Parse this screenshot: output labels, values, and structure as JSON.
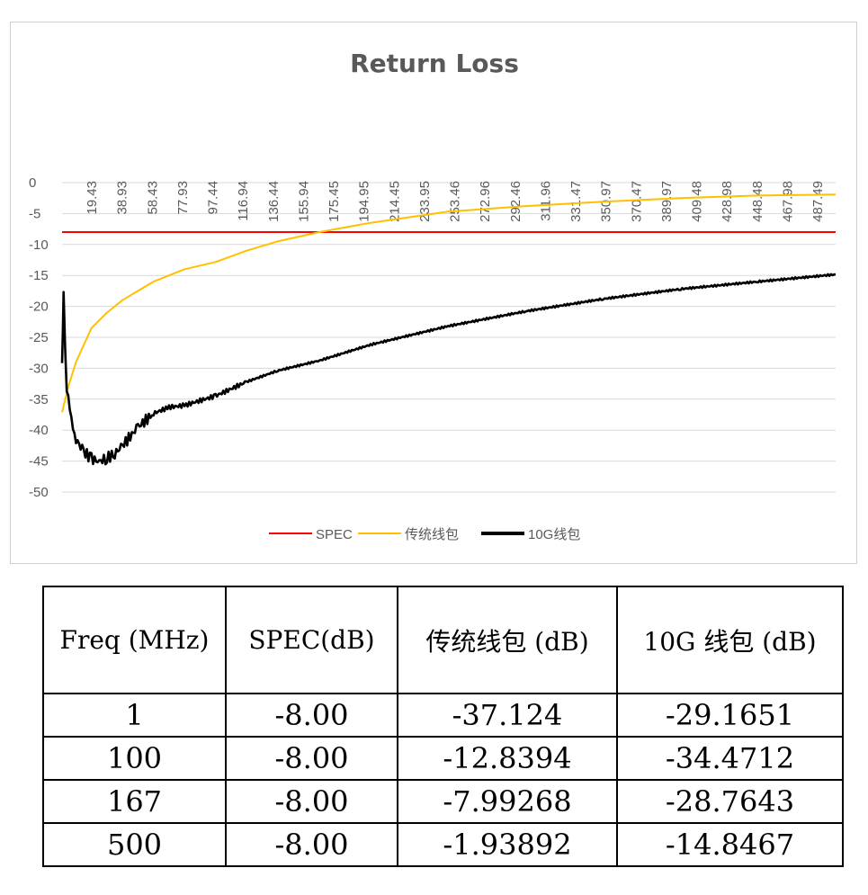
{
  "chart_data": {
    "type": "line",
    "title": "Return Loss",
    "xlabel": "",
    "ylabel": "",
    "x_tick_labels": [
      "19.43",
      "38.93",
      "58.43",
      "77.93",
      "97.44",
      "116.94",
      "136.44",
      "155.94",
      "175.45",
      "194.95",
      "214.45",
      "233.95",
      "253.46",
      "272.96",
      "292.46",
      "311.96",
      "331.47",
      "350.97",
      "370.47",
      "389.97",
      "409.48",
      "428.98",
      "448.48",
      "467.98",
      "487.49"
    ],
    "xlim": [
      1,
      500
    ],
    "ylim": [
      -50,
      0
    ],
    "y_ticks": [
      "0",
      "-5",
      "-10",
      "-15",
      "-20",
      "-25",
      "-30",
      "-35",
      "-40",
      "-45",
      "-50"
    ],
    "grid": true,
    "legend_position": "bottom",
    "series": [
      {
        "name": "SPEC",
        "color": "#ff0000",
        "x": [
          1,
          500
        ],
        "y": [
          -8,
          -8
        ]
      },
      {
        "name": "传统线包",
        "color": "#ffc000",
        "x": [
          1,
          5,
          10,
          20,
          30,
          40,
          50,
          60,
          70,
          80,
          100,
          120,
          140,
          167,
          200,
          250,
          300,
          350,
          400,
          450,
          500
        ],
        "y": [
          -37.124,
          -33,
          -29,
          -23.5,
          -21,
          -19,
          -17.5,
          -16,
          -15,
          -14,
          -12.8394,
          -11,
          -9.5,
          -7.99268,
          -6.5,
          -4.7,
          -3.8,
          -3.1,
          -2.5,
          -2.1,
          -1.93892
        ]
      },
      {
        "name": "10G线包",
        "color": "#000000",
        "x": [
          1,
          2,
          4,
          7,
          10,
          15,
          20,
          25,
          30,
          35,
          40,
          50,
          60,
          70,
          80,
          100,
          120,
          140,
          167,
          200,
          250,
          300,
          350,
          400,
          450,
          500
        ],
        "y": [
          -29.1651,
          -18.5,
          -33,
          -38.5,
          -41.5,
          -43.5,
          -44.6,
          -45.1,
          -44.5,
          -43.8,
          -42.5,
          -39.5,
          -37.3,
          -36.3,
          -36,
          -34.4712,
          -32.2,
          -30.4,
          -28.7643,
          -26.2,
          -23.2,
          -20.8,
          -18.8,
          -17.2,
          -16,
          -14.8467
        ]
      }
    ]
  },
  "table": {
    "headers": [
      "Freq (MHz)",
      "SPEC(dB)",
      "传统线包 (dB)",
      "10G 线包 (dB)"
    ],
    "rows": [
      [
        "1",
        "-8.00",
        "-37.124",
        "-29.1651"
      ],
      [
        "100",
        "-8.00",
        "-12.8394",
        "-34.4712"
      ],
      [
        "167",
        "-8.00",
        "-7.99268",
        "-28.7643"
      ],
      [
        "500",
        "-8.00",
        "-1.93892",
        "-14.8467"
      ]
    ]
  }
}
